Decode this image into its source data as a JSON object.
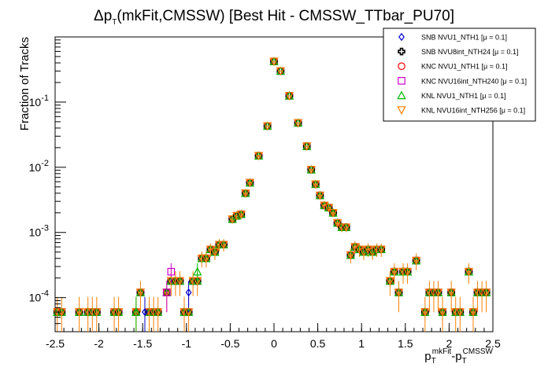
{
  "chart_data": {
    "type": "scatter",
    "title": {
      "delta": "Δ",
      "p": "p",
      "sub": "T",
      "rest": "(mkFit,CMSSW) [Best Hit - CMSSW_TTbar_PU70]"
    },
    "ylabel": "Fraction of Tracks",
    "xlabel": {
      "p1": "p",
      "sub1": "T",
      "sup1": "mkFit",
      "minus": "-",
      "p2": "p",
      "sub2": "T",
      "sup2": "CMSSW"
    },
    "x_range": [
      -2.5,
      2.5
    ],
    "y_range": [
      3e-05,
      1.0
    ],
    "y_scale": "log",
    "x_tick_labels": [
      "-2.5",
      "-2",
      "-1.5",
      "-1",
      "-0.5",
      "0",
      "0.5",
      "1",
      "1.5",
      "2",
      "2.5"
    ],
    "y_tick_labels": [
      {
        "base": "10",
        "exp": "-4"
      },
      {
        "base": "10",
        "exp": "-3"
      },
      {
        "base": "10",
        "exp": "-2"
      },
      {
        "base": "10",
        "exp": "-1"
      }
    ],
    "legend_position": "top-right",
    "series": [
      {
        "name": "SNB NVU1_NTH1 [μ = 0.1]",
        "color": "#0000cc",
        "marker": "diamond"
      },
      {
        "name": "SNB NVU8int_NTH24 [μ = 0.1]",
        "color": "#000000",
        "marker": "cross"
      },
      {
        "name": "KNC NVU1_NTH1 [μ = 0.1]",
        "color": "#ff0000",
        "marker": "circle"
      },
      {
        "name": "KNC NVU16int_NTH240 [μ = 0.1]",
        "color": "#cc00cc",
        "marker": "square"
      },
      {
        "name": "KNL NVU1_NTH1 [μ = 0.1]",
        "color": "#00bb00",
        "marker": "triangle-up"
      },
      {
        "name": "KNL NVU16int_NTH256 [μ = 0.1]",
        "color": "#ff7f00",
        "marker": "triangle-down"
      }
    ],
    "points": [
      {
        "x": -2.475,
        "y": 6e-05
      },
      {
        "x": -2.425,
        "y": 6e-05
      },
      {
        "x": -2.225,
        "y": 6e-05
      },
      {
        "x": -2.125,
        "y": 6e-05
      },
      {
        "x": -2.075,
        "y": 6e-05
      },
      {
        "x": -2.025,
        "y": 6e-05
      },
      {
        "x": -1.825,
        "y": 6e-05
      },
      {
        "x": -1.775,
        "y": 6e-05
      },
      {
        "x": -1.575,
        "y": 6e-05
      },
      {
        "x": -1.525,
        "y": 0.00012
      },
      {
        "x": -1.425,
        "y": 6e-05
      },
      {
        "x": -1.375,
        "y": 6e-05
      },
      {
        "x": -1.325,
        "y": 6e-05
      },
      {
        "x": -1.225,
        "y": 0.00012
      },
      {
        "x": -1.175,
        "y": 0.00018
      },
      {
        "x": -1.125,
        "y": 0.00018
      },
      {
        "x": -1.075,
        "y": 0.00018
      },
      {
        "x": -1.025,
        "y": 6e-05
      },
      {
        "x": -0.975,
        "y": 6e-05
      },
      {
        "x": -0.925,
        "y": 0.00018
      },
      {
        "x": -0.875,
        "y": 0.00018
      },
      {
        "x": -0.825,
        "y": 0.0004
      },
      {
        "x": -0.775,
        "y": 0.0004
      },
      {
        "x": -0.725,
        "y": 0.00055
      },
      {
        "x": -0.675,
        "y": 0.0005
      },
      {
        "x": -0.625,
        "y": 0.00065
      },
      {
        "x": -0.575,
        "y": 0.00065
      },
      {
        "x": -0.475,
        "y": 0.0016
      },
      {
        "x": -0.425,
        "y": 0.0018
      },
      {
        "x": -0.375,
        "y": 0.0019
      },
      {
        "x": -0.325,
        "y": 0.004
      },
      {
        "x": -0.275,
        "y": 0.0058
      },
      {
        "x": -0.175,
        "y": 0.015
      },
      {
        "x": -0.075,
        "y": 0.043
      },
      {
        "x": 0.0,
        "y": 0.42
      },
      {
        "x": 0.075,
        "y": 0.3
      },
      {
        "x": 0.175,
        "y": 0.125
      },
      {
        "x": 0.275,
        "y": 0.048
      },
      {
        "x": 0.375,
        "y": 0.021
      },
      {
        "x": 0.425,
        "y": 0.0092
      },
      {
        "x": 0.475,
        "y": 0.0055
      },
      {
        "x": 0.525,
        "y": 0.0037
      },
      {
        "x": 0.575,
        "y": 0.0026
      },
      {
        "x": 0.625,
        "y": 0.0024
      },
      {
        "x": 0.675,
        "y": 0.002
      },
      {
        "x": 0.725,
        "y": 0.0014
      },
      {
        "x": 0.775,
        "y": 0.0012
      },
      {
        "x": 0.825,
        "y": 0.0012
      },
      {
        "x": 0.875,
        "y": 0.00045
      },
      {
        "x": 0.925,
        "y": 0.0006
      },
      {
        "x": 0.975,
        "y": 0.00055
      },
      {
        "x": 1.025,
        "y": 0.0005
      },
      {
        "x": 1.075,
        "y": 0.00055
      },
      {
        "x": 1.125,
        "y": 0.0005
      },
      {
        "x": 1.175,
        "y": 0.00055
      },
      {
        "x": 1.225,
        "y": 0.00055
      },
      {
        "x": 1.325,
        "y": 0.00018
      },
      {
        "x": 1.375,
        "y": 0.00025
      },
      {
        "x": 1.425,
        "y": 0.00012
      },
      {
        "x": 1.475,
        "y": 0.00025
      },
      {
        "x": 1.525,
        "y": 0.00025
      },
      {
        "x": 1.625,
        "y": 0.00037
      },
      {
        "x": 1.725,
        "y": 6e-05
      },
      {
        "x": 1.775,
        "y": 0.00012
      },
      {
        "x": 1.825,
        "y": 0.00012
      },
      {
        "x": 1.875,
        "y": 0.00012
      },
      {
        "x": 1.925,
        "y": 6e-05
      },
      {
        "x": 2.025,
        "y": 0.00012
      },
      {
        "x": 2.075,
        "y": 6e-05
      },
      {
        "x": 2.125,
        "y": 6e-05
      },
      {
        "x": 2.225,
        "y": 0.00025
      },
      {
        "x": 2.275,
        "y": 6e-05
      },
      {
        "x": 2.325,
        "y": 0.00012
      },
      {
        "x": 2.375,
        "y": 0.00012
      },
      {
        "x": 2.425,
        "y": 0.00012
      }
    ],
    "outliers": [
      {
        "series": "SNB NVU1_NTH1 [μ = 0.1]",
        "x": -1.475,
        "y": 6e-05
      },
      {
        "series": "SNB NVU1_NTH1 [μ = 0.1]",
        "x": -0.975,
        "y": 0.00012
      },
      {
        "series": "KNC NVU16int_NTH240 [μ = 0.1]",
        "x": -1.175,
        "y": 0.00025
      },
      {
        "series": "KNC NVU16int_NTH240 [μ = 0.1]",
        "x": -1.225,
        "y": 0.00012
      },
      {
        "series": "KNL NVU1_NTH1 [μ = 0.1]",
        "x": -1.575,
        "y": 6e-05
      },
      {
        "series": "KNL NVU1_NTH1 [μ = 0.1]",
        "x": -0.875,
        "y": 0.00025
      }
    ]
  }
}
